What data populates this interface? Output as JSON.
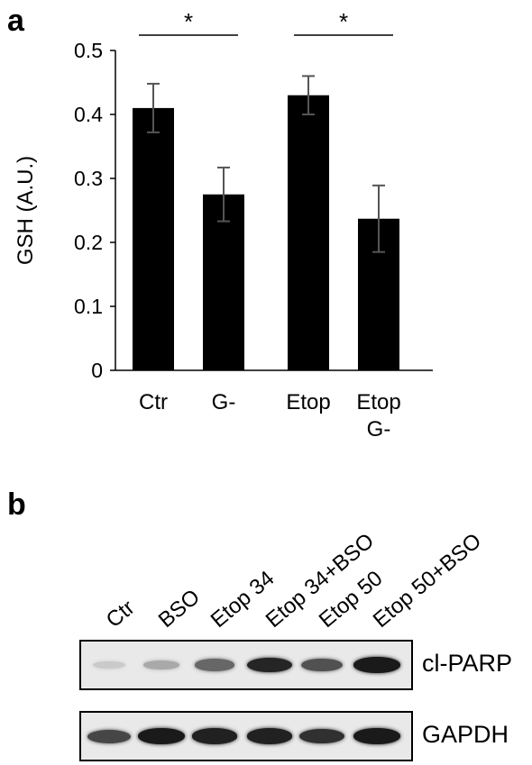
{
  "panel_a": {
    "letter": "a"
  },
  "panel_b": {
    "letter": "b"
  },
  "chart_data": {
    "type": "bar",
    "ylabel": "GSH (A.U.)",
    "ylim": [
      0,
      0.5
    ],
    "yticks": [
      "0",
      "0.1",
      "0.2",
      "0.3",
      "0.4",
      "0.5"
    ],
    "categories": [
      "Ctr",
      "G-",
      "Etop",
      "Etop\nG-"
    ],
    "values": [
      0.41,
      0.275,
      0.43,
      0.237
    ],
    "errors": [
      0.038,
      0.042,
      0.03,
      0.052
    ],
    "significance": [
      {
        "from": 0,
        "to": 1,
        "label": "*"
      },
      {
        "from": 2,
        "to": 3,
        "label": "*"
      }
    ],
    "bar_color": "#000000",
    "error_color": "#555555"
  },
  "blot": {
    "lanes": [
      "Ctr",
      "BSO",
      "Etop 34",
      "Etop 34+BSO",
      "Etop 50",
      "Etop 50+BSO"
    ],
    "rows": [
      {
        "label": "cl-PARP",
        "intensity": [
          0.15,
          0.3,
          0.6,
          0.9,
          0.7,
          0.95
        ]
      },
      {
        "label": "GAPDH",
        "intensity": [
          0.75,
          0.95,
          0.92,
          0.92,
          0.85,
          0.95
        ]
      }
    ]
  }
}
